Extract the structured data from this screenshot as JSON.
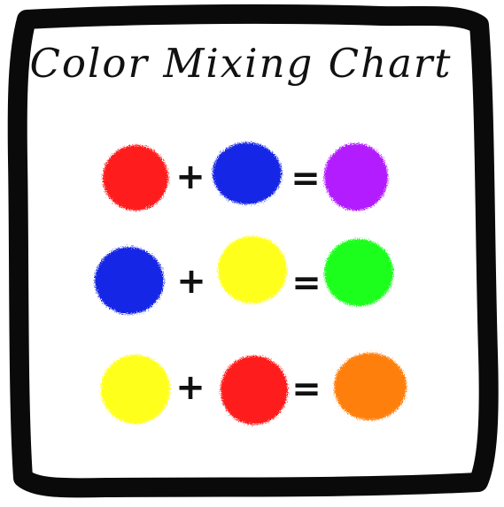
{
  "title": "Color Mixing Chart",
  "colors": {
    "frame": "#0a0a0a",
    "red": "#ff1a1a",
    "blue": "#1428e6",
    "yellow": "#ffff1a",
    "purple": "#b21aff",
    "green": "#1aff1a",
    "orange": "#ff7f0e"
  },
  "rows": [
    {
      "a": "red",
      "b": "blue",
      "result": "purple",
      "plus": "+",
      "equals": "="
    },
    {
      "a": "blue",
      "b": "yellow",
      "result": "green",
      "plus": "+",
      "equals": "="
    },
    {
      "a": "yellow",
      "b": "red",
      "result": "orange",
      "plus": "+",
      "equals": "="
    }
  ]
}
